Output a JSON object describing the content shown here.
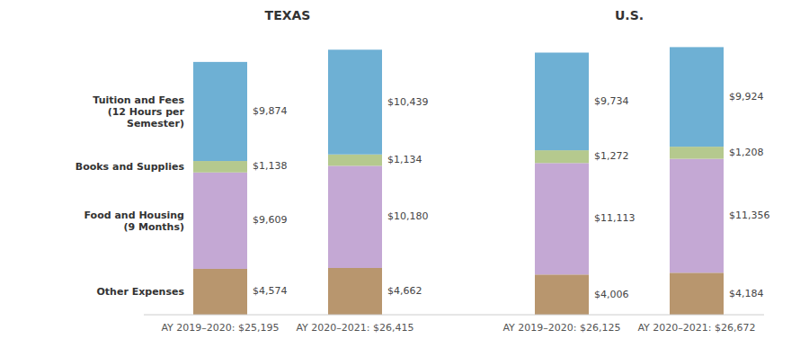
{
  "chart_data": {
    "type": "bar",
    "stacked": true,
    "data_labels": true,
    "grid": false,
    "tick_labels": "x",
    "categories": [
      "AY 2019–2020: $25,195",
      "AY 2020–2021: $26,415",
      "AY 2019–2020: $26,125",
      "AY 2020–2021: $26,672"
    ],
    "groups": [
      "TEXAS",
      "TEXAS",
      "U.S.",
      "U.S."
    ],
    "series": [
      {
        "name": "Other Expenses",
        "color": "#b8966e",
        "values": [
          4574,
          4662,
          4006,
          4184
        ],
        "value_labels": [
          "$4,574",
          "$4,662",
          "$4,006",
          "$4,184"
        ]
      },
      {
        "name": "Food and Housing\n(9 Months)",
        "color": "#c4a8d4",
        "values": [
          9609,
          10180,
          11113,
          11356
        ],
        "value_labels": [
          "$9,609",
          "$10,180",
          "$11,113",
          "$11,356"
        ]
      },
      {
        "name": "Books and Supplies",
        "color": "#b5c98e",
        "values": [
          1138,
          1134,
          1272,
          1208
        ],
        "value_labels": [
          "$1,138",
          "$1,134",
          "$1,272",
          "$1,208"
        ]
      },
      {
        "name": "Tuition and Fees\n(12 Hours per\nSemester)",
        "color": "#6eb0d4",
        "values": [
          9874,
          10439,
          9734,
          9924
        ],
        "value_labels": [
          "$9,874",
          "$10,439",
          "$9,734",
          "$9,924"
        ]
      }
    ],
    "ylim": [
      0,
      28500
    ]
  }
}
